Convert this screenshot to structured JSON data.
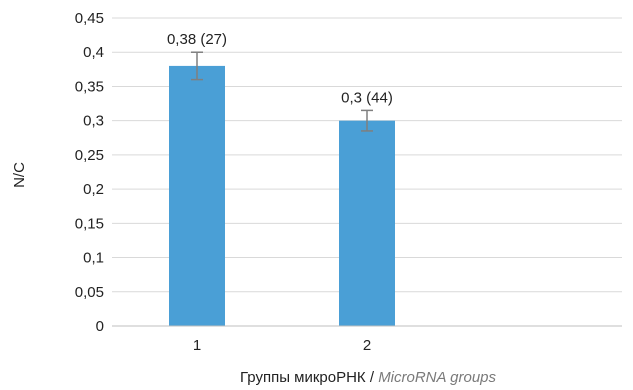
{
  "chart_data": {
    "type": "bar",
    "categories": [
      "1",
      "2"
    ],
    "values": [
      0.38,
      0.3
    ],
    "errors": [
      0.02,
      0.015
    ],
    "data_labels": [
      "0,38 (27)",
      "0,3 (44)"
    ],
    "ylabel": "N/C",
    "xlabel": "Группы микроРНК",
    "xlabel_separator": " / ",
    "xlabel_en": "MicroRNA groups",
    "ylim": [
      0,
      0.45
    ],
    "yticks": [
      "0",
      "0,05",
      "0,1",
      "0,15",
      "0,2",
      "0,25",
      "0,3",
      "0,35",
      "0,4",
      "0,45"
    ],
    "grid": true,
    "bar_color": "#4a9fd6",
    "error_color": "#7f7f7f"
  }
}
